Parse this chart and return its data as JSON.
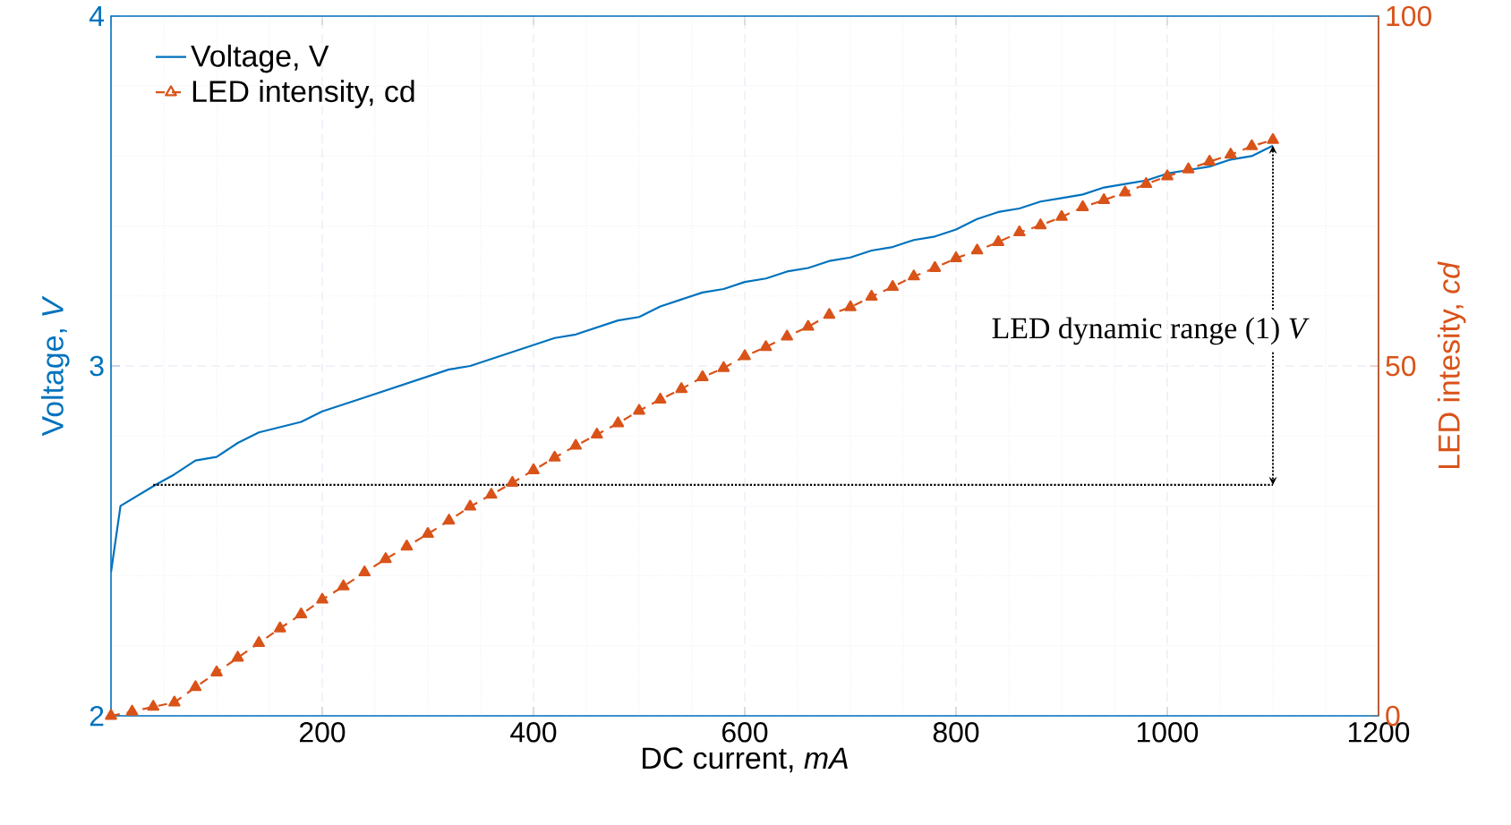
{
  "chart_data": {
    "type": "line",
    "xlabel": "DC current, *mA*",
    "ylabel": "Voltage, *V*",
    "y2label": "LED intesity, *cd*",
    "xlim": [
      0,
      1200
    ],
    "xticks": [
      {
        "value": 0,
        "label": null
      },
      200,
      400,
      600,
      800,
      1000,
      1200
    ],
    "ylim": [
      2,
      4
    ],
    "yticks": [
      2,
      3,
      4
    ],
    "y2lim": [
      0,
      100
    ],
    "y2ticks": [
      0,
      50,
      100
    ],
    "grid": true,
    "legend": "top left",
    "annotations": [
      {
        "text": "LED dynamic range (1) *V*",
        "x": 1100,
        "y": 3.63
      }
    ],
    "series": [
      {
        "name": "Voltage, V",
        "color": "#0072bd",
        "line_style": "solid",
        "marker": "none",
        "x": [
          0,
          9,
          42,
          60,
          80,
          100,
          120,
          140,
          180,
          200,
          240,
          280,
          320,
          340,
          380,
          420,
          440,
          480,
          500,
          520,
          560,
          580,
          600,
          620,
          640,
          660,
          680,
          700,
          720,
          740,
          760,
          780,
          800,
          820,
          840,
          860,
          880,
          900,
          920,
          940,
          960,
          980,
          1000,
          1020,
          1040,
          1060,
          1080,
          1100
        ],
        "values": [
          2.41,
          2.6,
          2.66,
          2.69,
          2.73,
          2.74,
          2.78,
          2.81,
          2.84,
          2.87,
          2.91,
          2.95,
          2.99,
          3.0,
          3.04,
          3.08,
          3.09,
          3.13,
          3.14,
          3.17,
          3.21,
          3.22,
          3.24,
          3.25,
          3.27,
          3.28,
          3.3,
          3.31,
          3.33,
          3.34,
          3.36,
          3.37,
          3.39,
          3.42,
          3.44,
          3.45,
          3.47,
          3.48,
          3.49,
          3.51,
          3.52,
          3.53,
          3.55,
          3.56,
          3.57,
          3.59,
          3.6,
          3.63
        ]
      },
      {
        "name": "LED intensity, cd",
        "color": "#d95319",
        "axis": "y2",
        "line_style": "dashed",
        "marker": "triangle",
        "x": [
          0,
          20,
          40,
          60,
          80,
          100,
          120,
          140,
          160,
          180,
          200,
          220,
          240,
          260,
          280,
          300,
          320,
          340,
          360,
          380,
          400,
          420,
          440,
          460,
          480,
          500,
          520,
          540,
          560,
          580,
          600,
          620,
          640,
          660,
          680,
          700,
          720,
          740,
          760,
          780,
          800,
          820,
          840,
          860,
          880,
          900,
          920,
          940,
          960,
          980,
          1000,
          1020,
          1040,
          1060,
          1080,
          1100
        ],
        "values": [
          0,
          0.6,
          1.3,
          1.9,
          4.1,
          6.2,
          8.3,
          10.4,
          12.5,
          14.5,
          16.6,
          18.5,
          20.5,
          22.4,
          24.2,
          26.0,
          27.9,
          29.9,
          31.6,
          33.3,
          35.1,
          36.9,
          38.6,
          40.2,
          41.8,
          43.6,
          45.2,
          46.7,
          48.4,
          49.7,
          51.4,
          52.7,
          54.2,
          55.6,
          57.3,
          58.4,
          59.9,
          61.3,
          62.8,
          64.0,
          65.4,
          66.5,
          67.7,
          69.1,
          70.1,
          71.3,
          72.7,
          73.7,
          74.8,
          76.0,
          77.1,
          78.1,
          79.2,
          80.2,
          81.4,
          82.3
        ]
      },
      {
        "color": "#000000",
        "line_style": "dotted",
        "marker": "none",
        "x": [
          40,
          1100
        ],
        "values": [
          2.66,
          2.66
        ]
      }
    ]
  }
}
